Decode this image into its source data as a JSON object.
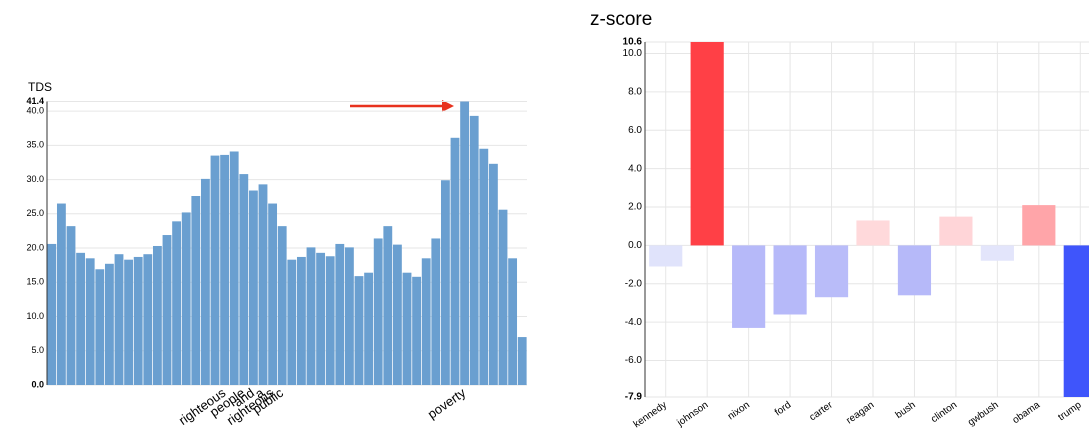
{
  "chart_data": [
    {
      "type": "bar",
      "title": "TDS",
      "color": "#6a9fd0",
      "categories": [
        null,
        null,
        null,
        null,
        null,
        null,
        null,
        null,
        null,
        null,
        null,
        null,
        null,
        null,
        null,
        null,
        null,
        null,
        "righteous",
        null,
        "people",
        "and",
        "a",
        "righteous",
        "public",
        null,
        null,
        null,
        null,
        null,
        null,
        null,
        null,
        null,
        null,
        null,
        null,
        null,
        null,
        null,
        null,
        null,
        null,
        "poverty",
        null,
        null,
        null,
        null,
        null,
        null
      ],
      "values": [
        20.6,
        26.5,
        23.2,
        19.3,
        18.5,
        16.9,
        17.7,
        19.1,
        18.3,
        18.7,
        19.1,
        20.3,
        21.9,
        23.9,
        25.2,
        27.6,
        30.1,
        33.5,
        33.6,
        34.1,
        30.8,
        28.4,
        29.3,
        26.5,
        23.2,
        18.3,
        18.7,
        20.1,
        19.3,
        18.8,
        20.6,
        20.1,
        15.9,
        16.4,
        21.4,
        23.2,
        20.5,
        16.4,
        15.8,
        18.5,
        21.4,
        29.9,
        36.1,
        41.4,
        39.3,
        34.5,
        32.3,
        25.6,
        18.5,
        7.0
      ],
      "ylim": [
        0,
        41.4
      ],
      "yticks": [
        {
          "value": 0,
          "label": "0.0"
        },
        {
          "value": 5,
          "label": "5.0"
        },
        {
          "value": 10,
          "label": "10.0"
        },
        {
          "value": 15,
          "label": "15.0"
        },
        {
          "value": 20,
          "label": "20.0"
        },
        {
          "value": 25,
          "label": "25.0"
        },
        {
          "value": 30,
          "label": "30.0"
        },
        {
          "value": 35,
          "label": "35.0"
        },
        {
          "value": 40,
          "label": "40.0"
        },
        41.4
      ],
      "grid": true
    },
    {
      "type": "bar",
      "title": "z-score",
      "categories": [
        "kennedy",
        "johnson",
        "nixon",
        "ford",
        "carter",
        "reagan",
        "bush",
        "clinton",
        "gwbush",
        "obama",
        "trump"
      ],
      "values": [
        -1.1,
        10.6,
        -4.3,
        -3.6,
        -2.7,
        1.3,
        -2.6,
        1.5,
        -0.8,
        2.1,
        -7.9
      ],
      "colors": [
        "#e0e3fb",
        "#ff4046",
        "#b6b9f9",
        "#b6b9f9",
        "#b9bcf9",
        "#ffd9db",
        "#b6b9f9",
        "#ffd5d8",
        "#e3e5fb",
        "#ffa5a9",
        "#3f55fb"
      ],
      "ylim": [
        -7.9,
        10.6
      ],
      "yticks": [
        -7.9,
        {
          "value": -6,
          "label": "-6.0"
        },
        {
          "value": -4,
          "label": "-4.0"
        },
        {
          "value": -2,
          "label": "-2.0"
        },
        {
          "value": 0,
          "label": "0.0"
        },
        {
          "value": 2,
          "label": "2.0"
        },
        {
          "value": 4,
          "label": "4.0"
        },
        {
          "value": 6,
          "label": "6.0"
        },
        {
          "value": 8,
          "label": "8.0"
        },
        {
          "value": 10,
          "label": "10.0"
        },
        10.6
      ],
      "grid": true
    }
  ]
}
